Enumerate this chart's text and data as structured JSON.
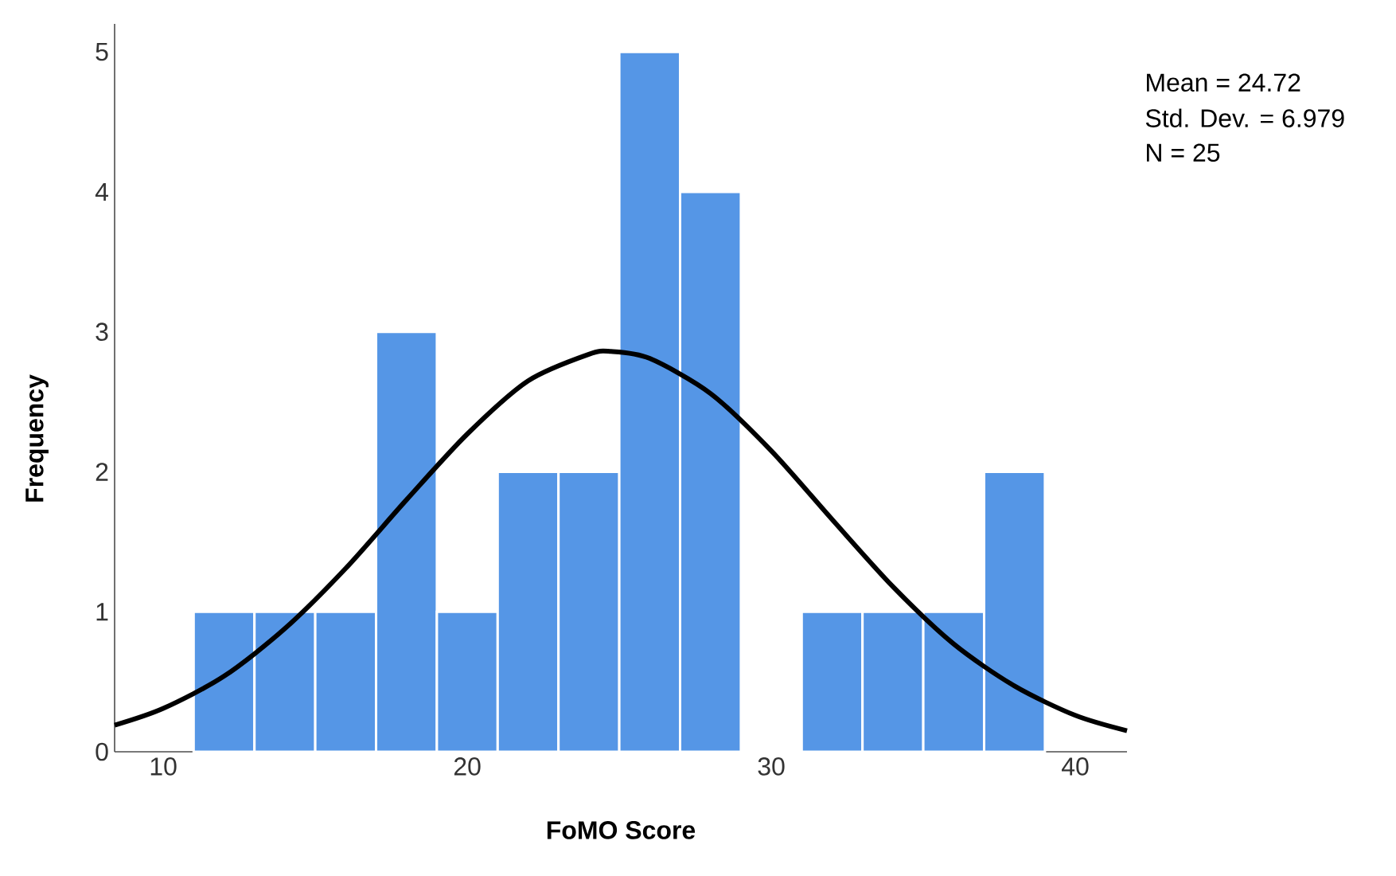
{
  "chart_data": {
    "type": "histogram",
    "xlabel": "FoMO Score",
    "ylabel": "Frequency",
    "xlim": [
      8.4,
      41.7
    ],
    "ylim": [
      0,
      5.2
    ],
    "xticks": [
      10,
      20,
      30,
      40
    ],
    "yticks": [
      0,
      1,
      2,
      3,
      4,
      5
    ],
    "grid": false,
    "series": [
      {
        "color": "#5596e6",
        "bins": [
          11,
          13,
          15,
          17,
          19,
          21,
          23,
          25,
          27,
          29,
          31,
          33,
          35,
          37,
          39
        ],
        "values": [
          1,
          1,
          1,
          3,
          1,
          2,
          2,
          5,
          4,
          0,
          1,
          1,
          1,
          2
        ]
      },
      {
        "type": "line",
        "color": "#000000",
        "x": [
          8.4,
          10,
          12,
          14,
          16,
          18,
          20,
          22,
          24,
          24.72,
          26,
          28,
          30,
          32,
          34,
          36,
          38,
          40,
          41.7
        ],
        "values": [
          0.19,
          0.31,
          0.54,
          0.88,
          1.31,
          1.8,
          2.27,
          2.65,
          2.84,
          2.86,
          2.81,
          2.56,
          2.15,
          1.66,
          1.18,
          0.77,
          0.47,
          0.26,
          0.15
        ]
      }
    ],
    "annotations": [
      "Mean = 24.72",
      "Std. Dev. = 6.979",
      "N = 25"
    ]
  }
}
